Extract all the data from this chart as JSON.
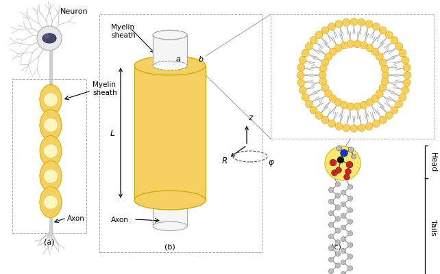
{
  "bg_color": "#ffffff",
  "yellow": "#F5D060",
  "yellow_head": "#F5CF50",
  "yellow_oval": "#FAE878",
  "gray_line": "#AAAAAA",
  "gray_atom": "#BBBBBB",
  "dark_gray_atom": "#888888",
  "dark_atom": "#111111",
  "blue_atom": "#1133CC",
  "red_atom": "#CC2222",
  "label_a": "(a)",
  "label_b": "(b)",
  "label_c": "(c)",
  "text_neuron": "Neuron",
  "text_myelin": "Myelin\nsheath",
  "text_axon": "Axon",
  "text_head": "Head",
  "text_tails": "Tails",
  "text_L": "L",
  "text_a": "a",
  "text_b": "b",
  "text_R": "R",
  "text_phi": "φ",
  "text_z": "z",
  "figwidth": 6.42,
  "figheight": 4.02,
  "dpi": 100
}
